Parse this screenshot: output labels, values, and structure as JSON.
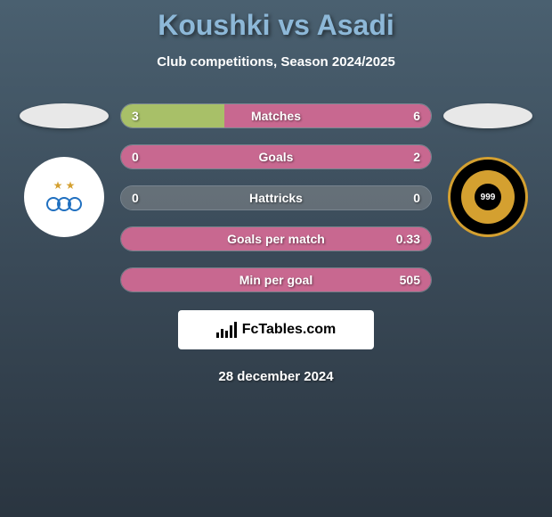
{
  "title": "Koushki vs Asadi",
  "subtitle": "Club competitions, Season 2024/2025",
  "date": "28 december 2024",
  "fctables_label": "FcTables.com",
  "colors": {
    "green": "#a8c068",
    "pink": "#c86890",
    "bg_top": "#4a6070",
    "bg_bottom": "#2a3540",
    "title_color": "#8db8d8"
  },
  "stats": [
    {
      "label": "Matches",
      "left_val": "3",
      "right_val": "6",
      "left_pct": 33.3,
      "right_pct": 66.7,
      "mode": "split"
    },
    {
      "label": "Goals",
      "left_val": "0",
      "right_val": "2",
      "left_pct": 0,
      "right_pct": 100,
      "mode": "full-pink"
    },
    {
      "label": "Hattricks",
      "left_val": "0",
      "right_val": "0",
      "left_pct": 0,
      "right_pct": 0,
      "mode": "neutral"
    },
    {
      "label": "Goals per match",
      "left_val": "",
      "right_val": "0.33",
      "left_pct": 0,
      "right_pct": 100,
      "mode": "full-pink"
    },
    {
      "label": "Min per goal",
      "left_val": "",
      "right_val": "505",
      "left_pct": 0,
      "right_pct": 100,
      "mode": "full-pink"
    }
  ],
  "left_club_logo": "esteghlal",
  "right_club_logo": "sepahan"
}
